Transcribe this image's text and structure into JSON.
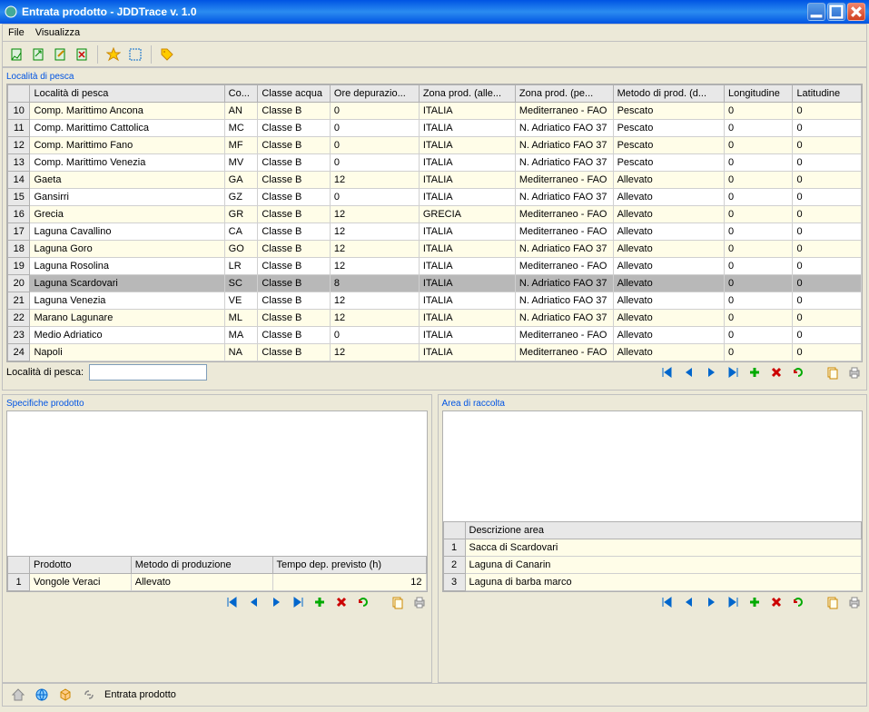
{
  "window": {
    "title": "Entrata prodotto - JDDTrace v. 1.0"
  },
  "menu": {
    "file": "File",
    "visualizza": "Visualizza"
  },
  "location_section": {
    "title": "Località di pesca",
    "filter_label": "Località di pesca:",
    "filter_value": "",
    "columns": [
      "Località di pesca",
      "Co...",
      "Classe acqua",
      "Ore depurazio...",
      "Zona prod. (alle...",
      "Zona prod. (pe...",
      "Metodo di prod. (d...",
      "Longitudine",
      "Latitudine"
    ],
    "rows": [
      {
        "n": 10,
        "cells": [
          "Comp. Marittimo Ancona",
          "AN",
          "Classe B",
          "0",
          "ITALIA",
          "Mediterraneo - FAO",
          "Pescato",
          "0",
          "0"
        ]
      },
      {
        "n": 11,
        "cells": [
          "Comp. Marittimo Cattolica",
          "MC",
          "Classe B",
          "0",
          "ITALIA",
          "N. Adriatico FAO 37",
          "Pescato",
          "0",
          "0"
        ]
      },
      {
        "n": 12,
        "cells": [
          "Comp. Marittimo Fano",
          "MF",
          "Classe B",
          "0",
          "ITALIA",
          "N. Adriatico FAO 37",
          "Pescato",
          "0",
          "0"
        ]
      },
      {
        "n": 13,
        "cells": [
          "Comp. Marittimo Venezia",
          "MV",
          "Classe B",
          "0",
          "ITALIA",
          "N. Adriatico FAO 37",
          "Pescato",
          "0",
          "0"
        ]
      },
      {
        "n": 14,
        "cells": [
          "Gaeta",
          "GA",
          "Classe B",
          "12",
          "ITALIA",
          "Mediterraneo - FAO",
          "Allevato",
          "0",
          "0"
        ]
      },
      {
        "n": 15,
        "cells": [
          "Gansirri",
          "GZ",
          "Classe B",
          "0",
          "ITALIA",
          "N. Adriatico FAO 37",
          "Allevato",
          "0",
          "0"
        ]
      },
      {
        "n": 16,
        "cells": [
          "Grecia",
          "GR",
          "Classe B",
          "12",
          "GRECIA",
          "Mediterraneo - FAO",
          "Allevato",
          "0",
          "0"
        ]
      },
      {
        "n": 17,
        "cells": [
          "Laguna Cavallino",
          "CA",
          "Classe B",
          "12",
          "ITALIA",
          "Mediterraneo - FAO",
          "Allevato",
          "0",
          "0"
        ]
      },
      {
        "n": 18,
        "cells": [
          "Laguna Goro",
          "GO",
          "Classe B",
          "12",
          "ITALIA",
          "N. Adriatico FAO 37",
          "Allevato",
          "0",
          "0"
        ]
      },
      {
        "n": 19,
        "cells": [
          "Laguna Rosolina",
          "LR",
          "Classe B",
          "12",
          "ITALIA",
          "Mediterraneo - FAO",
          "Allevato",
          "0",
          "0"
        ]
      },
      {
        "n": 20,
        "cells": [
          "Laguna Scardovari",
          "SC",
          "Classe B",
          "8",
          "ITALIA",
          "N. Adriatico FAO 37",
          "Allevato",
          "0",
          "0"
        ],
        "selected": true
      },
      {
        "n": 21,
        "cells": [
          "Laguna Venezia",
          "VE",
          "Classe B",
          "12",
          "ITALIA",
          "N. Adriatico FAO 37",
          "Allevato",
          "0",
          "0"
        ]
      },
      {
        "n": 22,
        "cells": [
          "Marano Lagunare",
          "ML",
          "Classe B",
          "12",
          "ITALIA",
          "N. Adriatico FAO 37",
          "Allevato",
          "0",
          "0"
        ]
      },
      {
        "n": 23,
        "cells": [
          "Medio Adriatico",
          "MA",
          "Classe B",
          "0",
          "ITALIA",
          "Mediterraneo - FAO",
          "Allevato",
          "0",
          "0"
        ]
      },
      {
        "n": 24,
        "cells": [
          "Napoli",
          "NA",
          "Classe B",
          "12",
          "ITALIA",
          "Mediterraneo - FAO",
          "Allevato",
          "0",
          "0"
        ]
      }
    ]
  },
  "left_panel": {
    "title": "Specifiche prodotto",
    "columns": [
      "Prodotto",
      "Metodo di produzione",
      "Tempo dep. previsto (h)"
    ],
    "rows": [
      {
        "n": 1,
        "cells": [
          "Vongole Veraci",
          "Allevato",
          "12"
        ]
      }
    ]
  },
  "right_panel": {
    "title": "Area di raccolta",
    "columns": [
      "Descrizione area"
    ],
    "rows": [
      {
        "n": 1,
        "cells": [
          "Sacca di Scardovari"
        ]
      },
      {
        "n": 2,
        "cells": [
          "Laguna di Canarin"
        ]
      },
      {
        "n": 3,
        "cells": [
          "Laguna di barba marco"
        ]
      }
    ]
  },
  "top_tools_label": "Entrata prodotto",
  "colors": {
    "accent": "#0054e3",
    "row_alt": "#fffde8",
    "selected": "#b8b8b8",
    "header_bg": "#e8e8e8",
    "border": "#b0b0b0",
    "panel_bg": "#ece9d8"
  }
}
